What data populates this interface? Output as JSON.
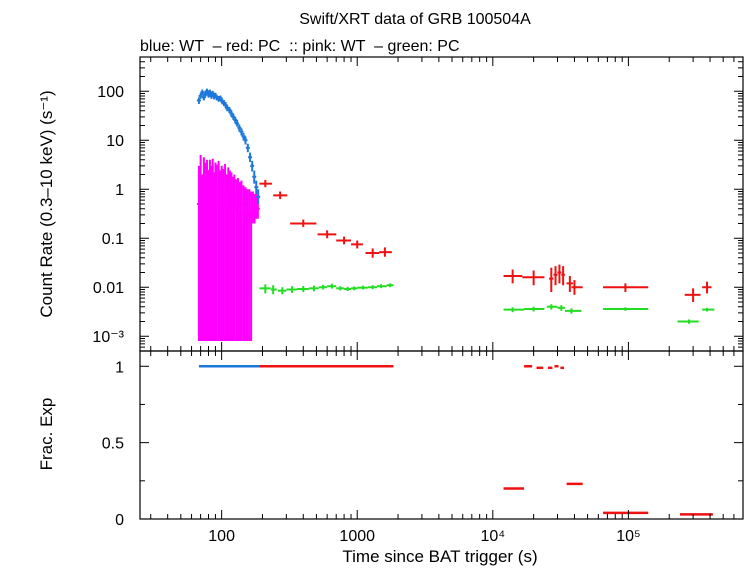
{
  "chart_data": {
    "type": "scatter",
    "title": "Swift/XRT data of GRB 100504A",
    "subtitle": "blue: WT  – red: PC  :: pink: WT  – green: PC",
    "xlabel": "Time since BAT trigger (s)",
    "xscale": "log",
    "xlim": [
      25,
      700000
    ],
    "x_ticks": [
      {
        "value": 100,
        "label": "100"
      },
      {
        "value": 1000,
        "label": "1000"
      },
      {
        "value": 10000,
        "label": "10⁴"
      },
      {
        "value": 100000,
        "label": "10⁵"
      }
    ],
    "panels": [
      {
        "name": "count-rate",
        "ylabel": "Count Rate (0.3–10 keV) (s⁻¹)",
        "yscale": "log",
        "ylim": [
          0.0005,
          500
        ],
        "y_ticks": [
          {
            "value": 100,
            "label": "100"
          },
          {
            "value": 10,
            "label": "10"
          },
          {
            "value": 1,
            "label": "1"
          },
          {
            "value": 0.1,
            "label": "0.1"
          },
          {
            "value": 0.01,
            "label": "0.01"
          },
          {
            "value": 0.001,
            "label": "10⁻³"
          }
        ],
        "series": [
          {
            "color": "#ff00ff",
            "style": "errorbar-dense",
            "points": [
              [
                68,
                0.5,
                0.0008,
                3.0
              ],
              [
                70,
                0.8,
                0.0008,
                5.0
              ],
              [
                72,
                0.3,
                0.0008,
                2.0
              ],
              [
                74,
                1.0,
                0.0008,
                4.5
              ],
              [
                76,
                0.6,
                0.0008,
                3.5
              ],
              [
                78,
                1.2,
                0.0008,
                4.0
              ],
              [
                80,
                0.4,
                0.0008,
                2.5
              ],
              [
                82,
                0.9,
                0.0008,
                4.0
              ],
              [
                84,
                0.5,
                0.0008,
                3.0
              ],
              [
                86,
                1.1,
                0.0008,
                4.2
              ],
              [
                88,
                0.3,
                0.0008,
                2.2
              ],
              [
                90,
                0.8,
                0.0008,
                3.5
              ],
              [
                92,
                0.6,
                0.0008,
                3.2
              ],
              [
                95,
                0.9,
                0.0008,
                3.8
              ],
              [
                98,
                0.4,
                0.0008,
                2.4
              ],
              [
                100,
                0.7,
                0.0008,
                3.0
              ],
              [
                103,
                0.5,
                0.0008,
                2.6
              ],
              [
                106,
                0.8,
                0.0008,
                3.3
              ],
              [
                109,
                0.35,
                0.0008,
                2.0
              ],
              [
                112,
                0.7,
                0.0008,
                2.8
              ],
              [
                115,
                0.5,
                0.0008,
                2.4
              ],
              [
                118,
                0.6,
                0.0008,
                2.2
              ],
              [
                121,
                0.3,
                0.0008,
                1.8
              ],
              [
                124,
                0.6,
                0.0008,
                2.0
              ],
              [
                128,
                0.4,
                0.0008,
                1.6
              ],
              [
                132,
                0.5,
                0.0008,
                1.7
              ],
              [
                136,
                0.3,
                0.0008,
                1.4
              ],
              [
                140,
                0.5,
                0.0008,
                1.5
              ],
              [
                145,
                0.3,
                0.0008,
                1.2
              ],
              [
                150,
                0.4,
                0.0008,
                1.1
              ],
              [
                155,
                0.3,
                0.0008,
                1.0
              ],
              [
                160,
                0.35,
                0.0008,
                1.0
              ],
              [
                165,
                0.3,
                0.0008,
                0.9
              ],
              [
                170,
                0.4,
                0.2,
                0.9
              ],
              [
                175,
                0.35,
                0.2,
                0.8
              ],
              [
                180,
                0.45,
                0.25,
                0.8
              ],
              [
                185,
                0.4,
                0.25,
                0.7
              ]
            ]
          },
          {
            "color": "#1e78dc",
            "style": "errorbar-dense",
            "points": [
              [
                68,
                65,
                55,
                75
              ],
              [
                70,
                80,
                70,
                92
              ],
              [
                72,
                95,
                83,
                108
              ],
              [
                74,
                75,
                65,
                86
              ],
              [
                76,
                90,
                78,
                103
              ],
              [
                78,
                100,
                88,
                113
              ],
              [
                80,
                85,
                74,
                97
              ],
              [
                82,
                95,
                83,
                108
              ],
              [
                84,
                80,
                70,
                91
              ],
              [
                86,
                90,
                79,
                102
              ],
              [
                88,
                78,
                68,
                89
              ],
              [
                90,
                82,
                72,
                93
              ],
              [
                92,
                75,
                65,
                85
              ],
              [
                95,
                70,
                61,
                80
              ],
              [
                98,
                72,
                63,
                82
              ],
              [
                101,
                62,
                54,
                71
              ],
              [
                104,
                58,
                50,
                66
              ],
              [
                107,
                52,
                45,
                60
              ],
              [
                110,
                45,
                39,
                52
              ],
              [
                114,
                42,
                36,
                48
              ],
              [
                118,
                35,
                30,
                41
              ],
              [
                122,
                30,
                26,
                35
              ],
              [
                126,
                26,
                22,
                30
              ],
              [
                130,
                22,
                19,
                26
              ],
              [
                135,
                18,
                15,
                21
              ],
              [
                140,
                15,
                12.5,
                17.5
              ],
              [
                145,
                12,
                10,
                14.2
              ],
              [
                150,
                10,
                8.2,
                12
              ],
              [
                156,
                7,
                5.7,
                8.5
              ],
              [
                162,
                4.5,
                3.6,
                5.6
              ],
              [
                168,
                3.0,
                2.3,
                3.8
              ],
              [
                174,
                1.8,
                1.3,
                2.4
              ],
              [
                180,
                1.1,
                0.8,
                1.5
              ],
              [
                186,
                0.7,
                0.5,
                1.0
              ]
            ]
          },
          {
            "color": "#ee1111",
            "style": "cross",
            "points": [
              [
                210,
                1.3,
                190,
                235,
                1.1,
                1.55
              ],
              [
                270,
                0.75,
                240,
                305,
                0.63,
                0.9
              ],
              [
                400,
                0.2,
                320,
                500,
                0.17,
                0.24
              ],
              [
                600,
                0.12,
                510,
                700,
                0.1,
                0.145
              ],
              [
                800,
                0.09,
                700,
                900,
                0.075,
                0.108
              ],
              [
                1000,
                0.075,
                900,
                1100,
                0.062,
                0.09
              ],
              [
                1300,
                0.05,
                1150,
                1450,
                0.04,
                0.062
              ],
              [
                1600,
                0.052,
                1450,
                1800,
                0.042,
                0.065
              ],
              [
                14000,
                0.017,
                12000,
                16500,
                0.012,
                0.023
              ],
              [
                20000,
                0.016,
                16500,
                24000,
                0.011,
                0.022
              ],
              [
                27000,
                0.015,
                26000,
                28000,
                0.008,
                0.025
              ],
              [
                29000,
                0.018,
                28000,
                30000,
                0.011,
                0.027
              ],
              [
                31000,
                0.02,
                30000,
                32000,
                0.012,
                0.029
              ],
              [
                33000,
                0.018,
                32000,
                34000,
                0.011,
                0.027
              ],
              [
                37000,
                0.012,
                35000,
                39000,
                0.008,
                0.017
              ],
              [
                40000,
                0.01,
                38000,
                46000,
                0.007,
                0.014
              ],
              [
                95000,
                0.01,
                65000,
                140000,
                0.008,
                0.012
              ],
              [
                300000,
                0.007,
                260000,
                340000,
                0.005,
                0.0095
              ],
              [
                380000,
                0.01,
                350000,
                410000,
                0.0075,
                0.013
              ]
            ]
          },
          {
            "color": "#22dd22",
            "style": "cross",
            "points": [
              [
                210,
                0.0095,
                190,
                230,
                0.0075,
                0.0115
              ],
              [
                240,
                0.009,
                230,
                255,
                0.0072,
                0.011
              ],
              [
                280,
                0.0085,
                260,
                300,
                0.0072,
                0.01
              ],
              [
                330,
                0.009,
                300,
                360,
                0.0077,
                0.0105
              ],
              [
                400,
                0.0092,
                360,
                440,
                0.008,
                0.0106
              ],
              [
                480,
                0.0095,
                440,
                520,
                0.0083,
                0.0108
              ],
              [
                560,
                0.01,
                520,
                600,
                0.009,
                0.0112
              ],
              [
                650,
                0.0105,
                600,
                700,
                0.0094,
                0.0118
              ],
              [
                750,
                0.0095,
                700,
                800,
                0.0086,
                0.0105
              ],
              [
                850,
                0.0092,
                800,
                900,
                0.0084,
                0.0102
              ],
              [
                950,
                0.0095,
                900,
                1000,
                0.0087,
                0.0104
              ],
              [
                1100,
                0.0098,
                1000,
                1200,
                0.009,
                0.0108
              ],
              [
                1300,
                0.01,
                1200,
                1400,
                0.0092,
                0.011
              ],
              [
                1500,
                0.0105,
                1400,
                1650,
                0.0096,
                0.0115
              ],
              [
                1750,
                0.011,
                1650,
                1850,
                0.01,
                0.012
              ],
              [
                14000,
                0.0035,
                12000,
                17000,
                0.0031,
                0.0039
              ],
              [
                20000,
                0.0036,
                17000,
                24000,
                0.0032,
                0.004
              ],
              [
                27000,
                0.004,
                25000,
                30000,
                0.0035,
                0.0045
              ],
              [
                32000,
                0.0038,
                30000,
                34000,
                0.0033,
                0.0043
              ],
              [
                38000,
                0.0033,
                34000,
                45000,
                0.0029,
                0.0037
              ],
              [
                95000,
                0.0036,
                65000,
                140000,
                0.0033,
                0.0039
              ],
              [
                280000,
                0.002,
                230000,
                330000,
                0.0018,
                0.0022
              ],
              [
                380000,
                0.0035,
                350000,
                430000,
                0.0032,
                0.0038
              ]
            ]
          }
        ]
      },
      {
        "name": "frac-exp",
        "ylabel": "Frac. Exp",
        "yscale": "linear",
        "ylim": [
          0,
          1.1
        ],
        "y_ticks": [
          {
            "value": 1,
            "label": "1"
          },
          {
            "value": 0.5,
            "label": "0.5"
          },
          {
            "value": 0,
            "label": "0"
          }
        ],
        "segments": [
          {
            "color": "#1e78dc",
            "x0": 68,
            "x1": 190,
            "y": 1.0
          },
          {
            "color": "#ee1111",
            "x0": 190,
            "x1": 1850,
            "y": 1.0
          },
          {
            "color": "#ee1111",
            "x0": 17000,
            "x1": 19500,
            "y": 1.0
          },
          {
            "color": "#ee1111",
            "x0": 21000,
            "x1": 23500,
            "y": 0.99
          },
          {
            "color": "#ee1111",
            "x0": 25500,
            "x1": 27500,
            "y": 0.99
          },
          {
            "color": "#ee1111",
            "x0": 28500,
            "x1": 30500,
            "y": 1.0
          },
          {
            "color": "#ee1111",
            "x0": 31500,
            "x1": 33500,
            "y": 0.99
          },
          {
            "color": "#ee1111",
            "x0": 12000,
            "x1": 17000,
            "y": 0.2
          },
          {
            "color": "#ee1111",
            "x0": 35000,
            "x1": 46000,
            "y": 0.23
          },
          {
            "color": "#ee1111",
            "x0": 65000,
            "x1": 140000,
            "y": 0.04
          },
          {
            "color": "#ee1111",
            "x0": 240000,
            "x1": 420000,
            "y": 0.03
          }
        ]
      }
    ]
  }
}
